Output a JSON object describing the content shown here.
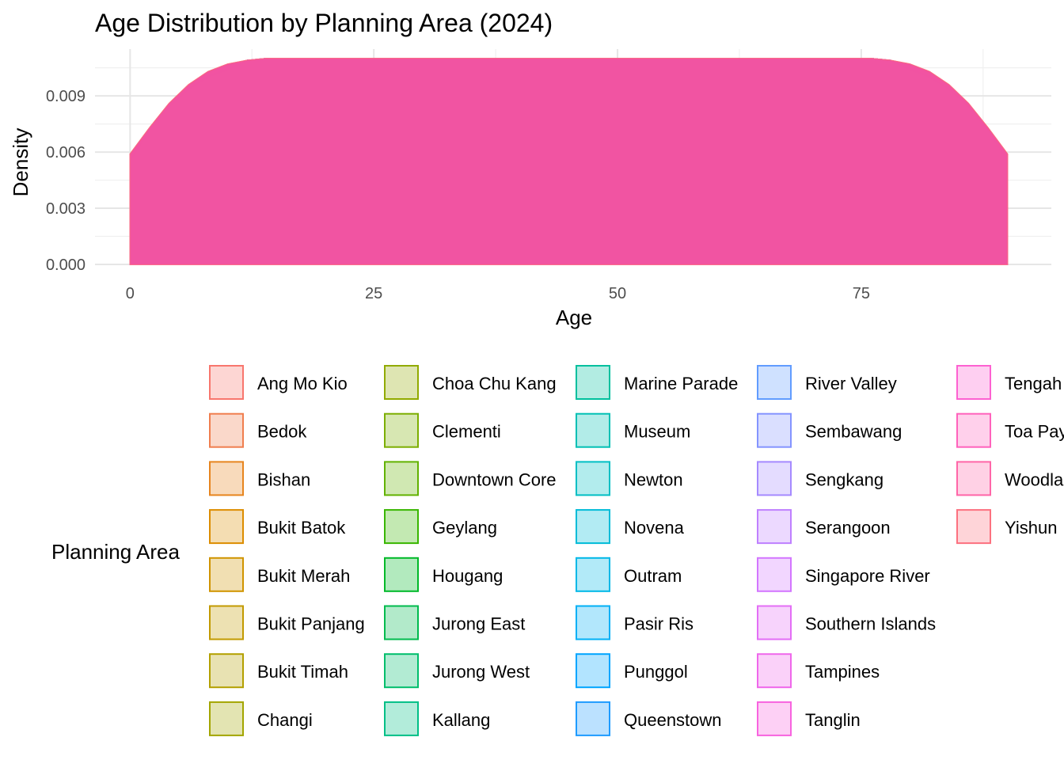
{
  "chart_data": {
    "type": "area",
    "title": "Age Distribution by Planning Area (2024)",
    "xlabel": "Age",
    "ylabel": "Density",
    "xlim": [
      -3.6,
      94.5
    ],
    "ylim": [
      0,
      0.0115
    ],
    "x_ticks": [
      0,
      25,
      50,
      75
    ],
    "x_tick_labels": [
      "0",
      "25",
      "50",
      "75"
    ],
    "y_ticks": [
      0,
      0.003,
      0.006,
      0.009
    ],
    "y_tick_labels": [
      "0.000",
      "0.003",
      "0.006",
      "0.009"
    ],
    "grid": true,
    "legend_title": "Planning Area",
    "legend_position": "bottom",
    "density_profile": {
      "x": [
        0,
        2,
        4,
        6,
        8,
        10,
        12,
        14,
        16,
        20,
        30,
        40,
        50,
        60,
        70,
        74,
        76,
        78,
        80,
        82,
        84,
        86,
        88,
        90
      ],
      "y": [
        0.0059,
        0.0073,
        0.0086,
        0.0096,
        0.0103,
        0.0107,
        0.0109,
        0.011,
        0.011,
        0.011,
        0.011,
        0.011,
        0.011,
        0.011,
        0.011,
        0.011,
        0.011,
        0.0109,
        0.0107,
        0.0103,
        0.0096,
        0.0086,
        0.0073,
        0.0059
      ]
    },
    "series": [
      {
        "name": "Ang Mo Kio",
        "color": "#F8766D"
      },
      {
        "name": "Bedok",
        "color": "#F07E4E"
      },
      {
        "name": "Bishan",
        "color": "#E7851E"
      },
      {
        "name": "Bukit Batok",
        "color": "#DC8D00"
      },
      {
        "name": "Bukit Merah",
        "color": "#D09400"
      },
      {
        "name": "Bukit Panjang",
        "color": "#C29A00"
      },
      {
        "name": "Bukit Timah",
        "color": "#B3A000"
      },
      {
        "name": "Changi",
        "color": "#A3A500"
      },
      {
        "name": "Choa Chu Kang",
        "color": "#91AA00"
      },
      {
        "name": "Clementi",
        "color": "#7CAE00"
      },
      {
        "name": "Downtown Core",
        "color": "#62B200"
      },
      {
        "name": "Geylang",
        "color": "#39B600"
      },
      {
        "name": "Hougang",
        "color": "#00B929"
      },
      {
        "name": "Jurong East",
        "color": "#00BB4E"
      },
      {
        "name": "Jurong West",
        "color": "#00BE6C"
      },
      {
        "name": "Kallang",
        "color": "#00BF86"
      },
      {
        "name": "Marine Parade",
        "color": "#00C09E"
      },
      {
        "name": "Museum",
        "color": "#00C0B4"
      },
      {
        "name": "Newton",
        "color": "#00BFC4"
      },
      {
        "name": "Novena",
        "color": "#00BCD8"
      },
      {
        "name": "Outram",
        "color": "#00B8E7"
      },
      {
        "name": "Pasir Ris",
        "color": "#00B0F6"
      },
      {
        "name": "Punggol",
        "color": "#00A5FF"
      },
      {
        "name": "Queenstown",
        "color": "#1E9BFF"
      },
      {
        "name": "River Valley",
        "color": "#619CFF"
      },
      {
        "name": "Sembawang",
        "color": "#8494FF"
      },
      {
        "name": "Sengkang",
        "color": "#A58AFF"
      },
      {
        "name": "Serangoon",
        "color": "#BF80FF"
      },
      {
        "name": "Singapore River",
        "color": "#D376FF"
      },
      {
        "name": "Southern Islands",
        "color": "#E36EF6"
      },
      {
        "name": "Tampines",
        "color": "#EF67EB"
      },
      {
        "name": "Tanglin",
        "color": "#F863DF"
      },
      {
        "name": "Tengah",
        "color": "#FD61D1"
      },
      {
        "name": "Toa Payoh",
        "color": "#FF62BC"
      },
      {
        "name": "Woodlands",
        "color": "#FF66A8"
      },
      {
        "name": "Yishun",
        "color": "#FC717F"
      }
    ]
  }
}
